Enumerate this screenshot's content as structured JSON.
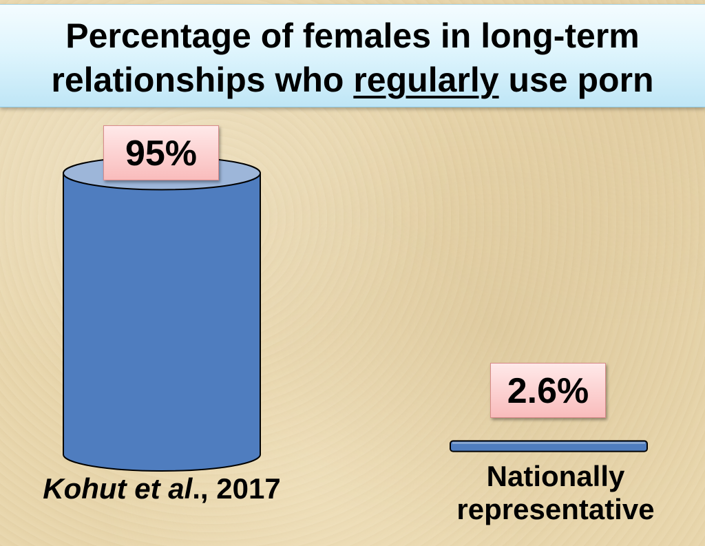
{
  "chart_data": {
    "type": "bar",
    "title": [
      "Percentage of females in long-term",
      "relationships who ",
      "regularly",
      " use porn"
    ],
    "categories": [
      {
        "parts": [
          {
            "text": "Kohut et al",
            "italic": true
          },
          {
            "text": "., 2017",
            "italic": false
          }
        ]
      },
      {
        "lines": [
          "Nationally",
          "representative"
        ]
      }
    ],
    "values": [
      95,
      2.6
    ],
    "value_labels": [
      "95%",
      "2.6%"
    ],
    "ylim": [
      0,
      100
    ],
    "bar_color": "#4f7dbf",
    "bar_top_color": "#9db6d9",
    "label_box_color": "#f9bcbc"
  }
}
